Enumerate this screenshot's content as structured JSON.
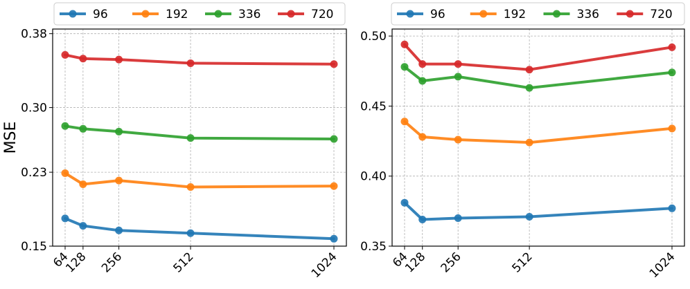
{
  "chart_data": [
    {
      "type": "line",
      "ylabel": "MSE",
      "xlabel": "",
      "x": [
        64,
        128,
        256,
        512,
        1024
      ],
      "xtick_labels": [
        "64",
        "128",
        "256",
        "512",
        "1024"
      ],
      "ylim": [
        0.15,
        0.385
      ],
      "yticks": [
        0.15,
        0.23,
        0.3,
        0.38
      ],
      "ytick_labels": [
        "0.15",
        "0.23",
        "0.30",
        "0.38"
      ],
      "grid": true,
      "legend_position": "top",
      "series": [
        {
          "name": "96",
          "color": "#1f77b4",
          "values": [
            0.18,
            0.172,
            0.167,
            0.164,
            0.158
          ]
        },
        {
          "name": "192",
          "color": "#ff7f0e",
          "values": [
            0.229,
            0.217,
            0.221,
            0.214,
            0.215
          ]
        },
        {
          "name": "336",
          "color": "#2ca02c",
          "values": [
            0.28,
            0.277,
            0.274,
            0.267,
            0.266
          ]
        },
        {
          "name": "720",
          "color": "#d62728",
          "values": [
            0.357,
            0.353,
            0.352,
            0.348,
            0.347
          ]
        }
      ]
    },
    {
      "type": "line",
      "ylabel": "",
      "xlabel": "",
      "x": [
        64,
        128,
        256,
        512,
        1024
      ],
      "xtick_labels": [
        "64",
        "128",
        "256",
        "512",
        "1024"
      ],
      "ylim": [
        0.35,
        0.505
      ],
      "yticks": [
        0.35,
        0.4,
        0.45,
        0.5
      ],
      "ytick_labels": [
        "0.35",
        "0.40",
        "0.45",
        "0.50"
      ],
      "grid": true,
      "legend_position": "top",
      "series": [
        {
          "name": "96",
          "color": "#1f77b4",
          "values": [
            0.381,
            0.369,
            0.37,
            0.371,
            0.377
          ]
        },
        {
          "name": "192",
          "color": "#ff7f0e",
          "values": [
            0.439,
            0.428,
            0.426,
            0.424,
            0.434
          ]
        },
        {
          "name": "336",
          "color": "#2ca02c",
          "values": [
            0.478,
            0.468,
            0.471,
            0.463,
            0.474
          ]
        },
        {
          "name": "720",
          "color": "#d62728",
          "values": [
            0.494,
            0.48,
            0.48,
            0.476,
            0.492
          ]
        }
      ]
    }
  ]
}
